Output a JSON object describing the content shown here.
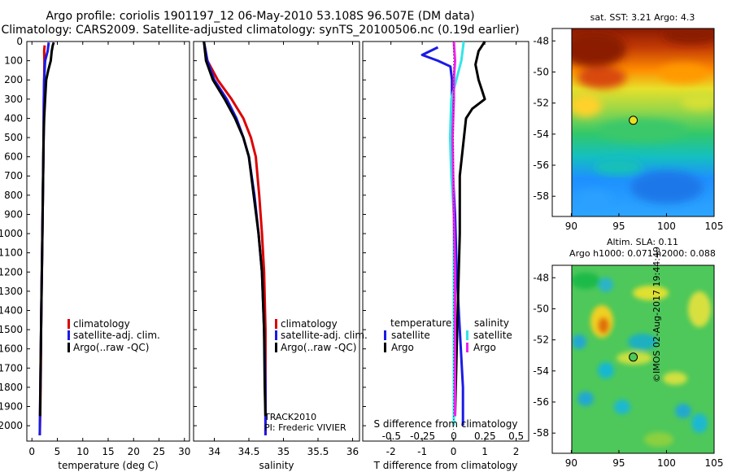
{
  "header": {
    "line1": "Argo profile: coriolis 1901197_12 06-May-2010 53.108S 96.507E (DM data)",
    "line2": "Climatology: CARS2009. Satellite-adjusted climatology: synTS_20100506.nc (0.19d earlier)"
  },
  "colors": {
    "climatology": "#dd0000",
    "satellite": "#1a1ae6",
    "argo": "#000000",
    "satellite_salinity": "#33e6e6",
    "argo_salinity": "#ee22ee"
  },
  "legend_labels": {
    "climatology": "climatology",
    "satellite_adj": "satellite-adj. clim.",
    "argo": "Argo(..raw -QC)"
  },
  "diff_legend": {
    "temperature": "temperature",
    "salinity": "salinity",
    "satellite": "satellite",
    "argo": "Argo"
  },
  "annotations": {
    "track": "TRACK2010",
    "pi": "PI: Frederic VIVIER",
    "sst_title": "sat. SST: 3.21 Argo: 4.3",
    "sla_title1": "Altim. SLA: 0.11",
    "sla_title2": "Argo h1000: 0.071 h2000: 0.088",
    "stamp": "©IMOS 02-Aug-2017 19:44:49"
  },
  "chart_data": [
    {
      "type": "line",
      "xlabel": "temperature (deg C)",
      "ylabel": "",
      "xlim": [
        -1,
        31
      ],
      "ylim": [
        2080,
        0
      ],
      "x_ticks": [
        0,
        5,
        10,
        15,
        20,
        25,
        30
      ],
      "y_ticks": [
        0,
        100,
        200,
        300,
        400,
        500,
        600,
        700,
        800,
        900,
        1000,
        1100,
        1200,
        1300,
        1400,
        1500,
        1600,
        1700,
        1800,
        1900,
        2000
      ],
      "series": [
        {
          "name": "climatology",
          "color_key": "climatology",
          "x": [
            2.5,
            2.4,
            2.45,
            2.4,
            2.35,
            2.3,
            2.2,
            2.1,
            2.0,
            1.9,
            1.8,
            1.75,
            1.65,
            1.55
          ],
          "y": [
            20,
            50,
            100,
            200,
            300,
            500,
            700,
            900,
            1100,
            1300,
            1500,
            1700,
            1900,
            2050
          ]
        },
        {
          "name": "satellite-adj. clim.",
          "color_key": "satellite",
          "x": [
            3.3,
            3.1,
            2.6,
            2.4,
            2.35,
            2.3,
            2.2,
            2.1,
            2.0,
            1.9,
            1.8,
            1.7,
            1.6,
            1.55
          ],
          "y": [
            5,
            50,
            100,
            200,
            300,
            500,
            700,
            900,
            1100,
            1300,
            1500,
            1700,
            1900,
            2050
          ]
        },
        {
          "name": "Argo(..raw -QC)",
          "color_key": "argo",
          "x": [
            4.3,
            4.1,
            3.9,
            3.7,
            3.2,
            2.8,
            2.6,
            2.4,
            2.3,
            2.2,
            2.1,
            2.0,
            1.9,
            1.8,
            1.7,
            1.6
          ],
          "y": [
            5,
            20,
            50,
            100,
            150,
            200,
            300,
            400,
            500,
            700,
            900,
            1100,
            1300,
            1500,
            1700,
            1950
          ]
        }
      ]
    },
    {
      "type": "line",
      "xlabel": "salinity",
      "ylabel": "",
      "xlim": [
        33.7,
        36.1
      ],
      "ylim": [
        2080,
        0
      ],
      "x_ticks": [
        34,
        34.5,
        35,
        35.5,
        36
      ],
      "series": [
        {
          "name": "climatology",
          "color_key": "climatology",
          "x": [
            33.85,
            33.9,
            34.05,
            34.25,
            34.42,
            34.53,
            34.6,
            34.65,
            34.69,
            34.72,
            34.74,
            34.74,
            34.74
          ],
          "y": [
            0,
            100,
            200,
            300,
            400,
            500,
            600,
            800,
            1000,
            1200,
            1500,
            1800,
            2050
          ]
        },
        {
          "name": "satellite-adj. clim.",
          "color_key": "satellite",
          "x": [
            33.85,
            33.9,
            34.0,
            34.18,
            34.32,
            34.42,
            34.5,
            34.58,
            34.64,
            34.69,
            34.72,
            34.74,
            34.74
          ],
          "y": [
            0,
            100,
            200,
            300,
            400,
            500,
            600,
            800,
            1000,
            1200,
            1500,
            1800,
            2050
          ]
        },
        {
          "name": "Argo(..raw -QC)",
          "color_key": "argo",
          "x": [
            33.85,
            33.88,
            33.98,
            34.15,
            34.3,
            34.42,
            34.5,
            34.57,
            34.64,
            34.69,
            34.72,
            34.73,
            34.74
          ],
          "y": [
            0,
            100,
            200,
            300,
            400,
            500,
            600,
            800,
            1000,
            1200,
            1500,
            1800,
            1950
          ]
        }
      ]
    },
    {
      "type": "line",
      "xlabel": "T difference from climatology",
      "xlabel_top": "S difference from climatology",
      "ylabel": "",
      "xlim": [
        -2.9,
        2.4
      ],
      "xlim_top": [
        -0.73,
        0.6
      ],
      "ylim": [
        2080,
        0
      ],
      "x_ticks": [
        -2,
        -1,
        0,
        1,
        2
      ],
      "x_ticks_top": [
        -0.5,
        -0.25,
        0,
        0.25,
        0.5
      ],
      "series": [
        {
          "name": "temperature satellite",
          "color_key": "satellite",
          "axis": "T",
          "x": [
            -0.5,
            -1.0,
            -0.5,
            -0.1,
            -0.05,
            -0.05,
            -0.05,
            0.05,
            0.1,
            0.2,
            0.3,
            0.3
          ],
          "y": [
            30,
            70,
            100,
            130,
            200,
            400,
            600,
            900,
            1200,
            1500,
            1800,
            2000
          ]
        },
        {
          "name": "temperature Argo",
          "color_key": "argo",
          "axis": "T",
          "x": [
            1.0,
            0.8,
            0.7,
            0.8,
            0.9,
            1.0,
            0.6,
            0.4,
            0.2,
            0.2,
            0.15,
            0.1,
            0.05
          ],
          "y": [
            0,
            50,
            120,
            200,
            250,
            300,
            350,
            400,
            700,
            1000,
            1300,
            1600,
            1950
          ]
        },
        {
          "name": "salinity satellite",
          "color_key": "satellite_salinity",
          "axis": "S",
          "x": [
            0.08,
            0.06,
            0.02,
            -0.02,
            -0.03,
            -0.02,
            0.0,
            0.0,
            0.0,
            0.0
          ],
          "y": [
            0,
            100,
            200,
            300,
            500,
            700,
            900,
            1200,
            1600,
            2000
          ]
        },
        {
          "name": "salinity Argo",
          "color_key": "argo_salinity",
          "axis": "S",
          "x": [
            0.0,
            0.01,
            0.0,
            0.0,
            -0.01,
            -0.005,
            0.0,
            0.01,
            0.01,
            0.01
          ],
          "y": [
            0,
            100,
            200,
            300,
            500,
            700,
            900,
            1200,
            1600,
            1950
          ]
        }
      ]
    },
    {
      "type": "heatmap",
      "title": "sat. SST: 3.21 Argo: 4.3",
      "xlim": [
        88,
        105
      ],
      "ylim": [
        -59.3,
        -47.2
      ],
      "x_ticks": [
        90,
        95,
        100,
        105
      ],
      "y_ticks": [
        -48,
        -50,
        -52,
        -54,
        -56,
        -58
      ],
      "marker": {
        "lon": 96.507,
        "lat": -53.108
      }
    },
    {
      "type": "heatmap",
      "title": "Altim. SLA: 0.11",
      "subtitle": "Argo h1000: 0.071 h2000: 0.088",
      "xlim": [
        88,
        105
      ],
      "ylim": [
        -59.3,
        -47.2
      ],
      "x_ticks": [
        90,
        95,
        100,
        105
      ],
      "y_ticks": [
        -48,
        -50,
        -52,
        -54,
        -56,
        -58
      ],
      "marker": {
        "lon": 96.507,
        "lat": -53.108
      }
    }
  ]
}
